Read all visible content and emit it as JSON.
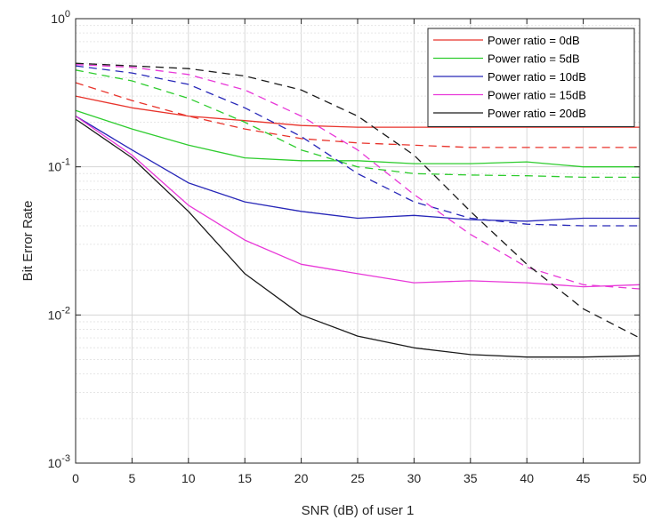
{
  "chart_data": {
    "type": "line",
    "xlabel": "SNR (dB) of user 1",
    "ylabel": "Bit Error Rate",
    "xlim": [
      0,
      50
    ],
    "ylim": [
      0.001,
      1
    ],
    "yscale": "log",
    "grid": true,
    "minor_grid": true,
    "legend_position": "top-right",
    "x_ticks": [
      "0",
      "5",
      "10",
      "15",
      "20",
      "25",
      "30",
      "35",
      "40",
      "45",
      "50"
    ],
    "y_ticks": [
      {
        "base": "10",
        "exp": "-3",
        "value": 0.001
      },
      {
        "base": "10",
        "exp": "-2",
        "value": 0.01
      },
      {
        "base": "10",
        "exp": "-1",
        "value": 0.1
      },
      {
        "base": "10",
        "exp": "0",
        "value": 1
      }
    ],
    "x": [
      0,
      5,
      10,
      15,
      20,
      25,
      30,
      35,
      40,
      45,
      50
    ],
    "series": [
      {
        "name": "Power ratio = 0dB",
        "color": "#e8332b",
        "style": "solid",
        "values": [
          0.3,
          0.25,
          0.22,
          0.205,
          0.19,
          0.185,
          0.185,
          0.185,
          0.185,
          0.185,
          0.185
        ]
      },
      {
        "name": "Power ratio = 5dB",
        "color": "#2ecc2e",
        "style": "solid",
        "values": [
          0.24,
          0.18,
          0.14,
          0.115,
          0.11,
          0.11,
          0.105,
          0.105,
          0.108,
          0.1,
          0.1
        ]
      },
      {
        "name": "Power ratio = 10dB",
        "color": "#2727b8",
        "style": "solid",
        "values": [
          0.22,
          0.13,
          0.078,
          0.058,
          0.05,
          0.045,
          0.047,
          0.044,
          0.043,
          0.045,
          0.045
        ]
      },
      {
        "name": "Power ratio = 15dB",
        "color": "#e838d8",
        "style": "solid",
        "values": [
          0.22,
          0.12,
          0.055,
          0.032,
          0.022,
          0.019,
          0.0165,
          0.017,
          0.0165,
          0.0155,
          0.016
        ]
      },
      {
        "name": "Power ratio = 20dB",
        "color": "#1a1a1a",
        "style": "solid",
        "values": [
          0.21,
          0.115,
          0.05,
          0.019,
          0.01,
          0.0072,
          0.006,
          0.0054,
          0.0052,
          0.0052,
          0.0053
        ]
      },
      {
        "color": "#e8332b",
        "style": "dashed",
        "values": [
          0.37,
          0.28,
          0.22,
          0.18,
          0.155,
          0.145,
          0.14,
          0.135,
          0.135,
          0.135,
          0.135
        ]
      },
      {
        "color": "#2ecc2e",
        "style": "dashed",
        "values": [
          0.45,
          0.38,
          0.29,
          0.2,
          0.13,
          0.1,
          0.09,
          0.088,
          0.087,
          0.085,
          0.085
        ]
      },
      {
        "color": "#2727b8",
        "style": "dashed",
        "values": [
          0.48,
          0.43,
          0.36,
          0.25,
          0.16,
          0.09,
          0.058,
          0.045,
          0.041,
          0.04,
          0.04
        ]
      },
      {
        "color": "#e838d8",
        "style": "dashed",
        "values": [
          0.49,
          0.47,
          0.42,
          0.33,
          0.22,
          0.13,
          0.065,
          0.035,
          0.021,
          0.016,
          0.015
        ]
      },
      {
        "color": "#1a1a1a",
        "style": "dashed",
        "values": [
          0.5,
          0.48,
          0.46,
          0.41,
          0.33,
          0.22,
          0.12,
          0.05,
          0.022,
          0.011,
          0.007
        ]
      }
    ]
  }
}
